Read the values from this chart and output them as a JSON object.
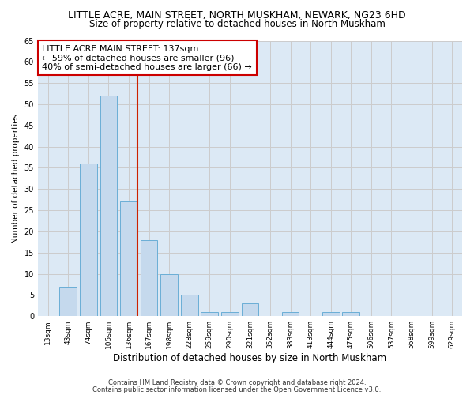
{
  "title": "LITTLE ACRE, MAIN STREET, NORTH MUSKHAM, NEWARK, NG23 6HD",
  "subtitle": "Size of property relative to detached houses in North Muskham",
  "xlabel": "Distribution of detached houses by size in North Muskham",
  "ylabel": "Number of detached properties",
  "categories": [
    "13sqm",
    "43sqm",
    "74sqm",
    "105sqm",
    "136sqm",
    "167sqm",
    "198sqm",
    "228sqm",
    "259sqm",
    "290sqm",
    "321sqm",
    "352sqm",
    "383sqm",
    "413sqm",
    "444sqm",
    "475sqm",
    "506sqm",
    "537sqm",
    "568sqm",
    "599sqm",
    "629sqm"
  ],
  "values": [
    0,
    7,
    36,
    52,
    27,
    18,
    10,
    5,
    1,
    1,
    3,
    0,
    1,
    0,
    1,
    1,
    0,
    0,
    0,
    0,
    0
  ],
  "bar_color": "#c5d9ed",
  "bar_edge_color": "#6aaed6",
  "highlight_line_color": "#cc2200",
  "highlight_index": 4,
  "annotation_text": "LITTLE ACRE MAIN STREET: 137sqm\n← 59% of detached houses are smaller (96)\n40% of semi-detached houses are larger (66) →",
  "annotation_box_color": "#ffffff",
  "annotation_box_edge": "#cc0000",
  "ylim": [
    0,
    65
  ],
  "yticks": [
    0,
    5,
    10,
    15,
    20,
    25,
    30,
    35,
    40,
    45,
    50,
    55,
    60,
    65
  ],
  "grid_color": "#cccccc",
  "plot_bg_color": "#dce9f5",
  "footer_line1": "Contains HM Land Registry data © Crown copyright and database right 2024.",
  "footer_line2": "Contains public sector information licensed under the Open Government Licence v3.0.",
  "title_fontsize": 9,
  "subtitle_fontsize": 8.5,
  "xlabel_fontsize": 8.5,
  "ylabel_fontsize": 7.5
}
